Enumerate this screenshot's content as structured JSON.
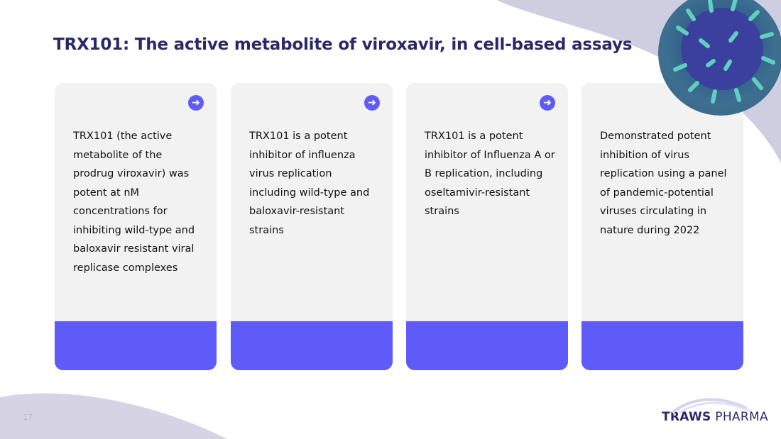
{
  "title": "TRX101: The active metabolite of viroxavir, in cell-based assays",
  "cards": [
    {
      "text": "TRX101 (the active metabolite of the prodrug viroxavir) was potent at nM concentrations for inhibiting wild-type and baloxavir resistant viral replicase complexes",
      "icon": "arrow-right-icon"
    },
    {
      "text": "TRX101 is a potent inhibitor of influenza virus replication including wild-type and baloxavir-resistant strains",
      "icon": "arrow-right-icon"
    },
    {
      "text": "TRX101 is a potent inhibitor of Influenza A or B replication, including oseltamivir-resistant strains",
      "icon": "arrow-right-icon"
    },
    {
      "text": "Demonstrated potent inhibition of virus replication using a panel of pandemic-potential viruses circulating in nature during 2022"
    }
  ],
  "page_number": "17",
  "logo": {
    "bold": "TRAWS",
    "light": "PHARMA"
  },
  "colors": {
    "accent": "#5e5bf8",
    "title": "#2a2868",
    "card": "#f2f2f2",
    "blob": "#cfcde0"
  }
}
